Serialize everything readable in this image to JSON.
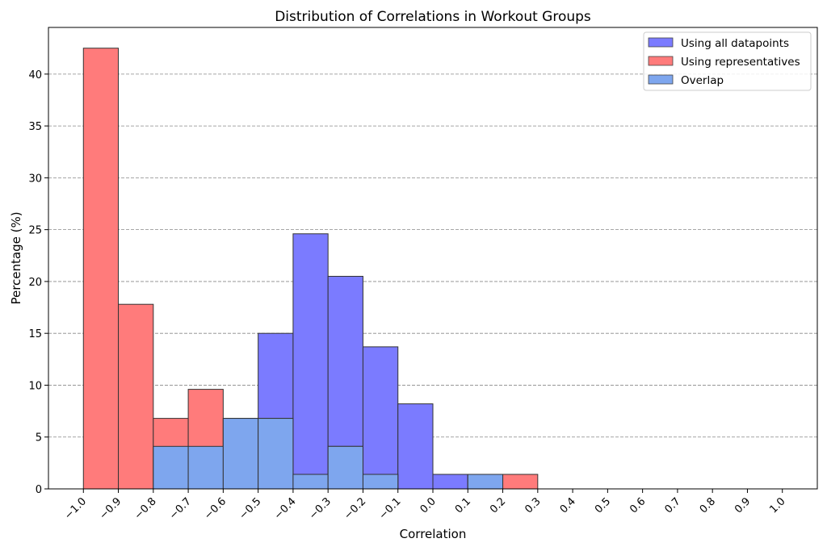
{
  "chart_data": {
    "type": "bar",
    "title": "Distribution of Correlations in Workout Groups",
    "xlabel": "Correlation",
    "ylabel": "Percentage (%)",
    "xlim": [
      -1.1,
      1.1
    ],
    "ylim": [
      0,
      44.5
    ],
    "grid": "y-dashed",
    "legend_position": "top-right",
    "bin_edges": [
      -1.0,
      -0.9,
      -0.8,
      -0.7,
      -0.6,
      -0.5,
      -0.4,
      -0.3,
      -0.2,
      -0.1,
      0.0,
      0.1,
      0.2,
      0.3,
      0.4,
      0.5,
      0.6,
      0.7,
      0.8,
      0.9,
      1.0
    ],
    "x_ticks": [
      -1.0,
      -0.9,
      -0.8,
      -0.7,
      -0.6,
      -0.5,
      -0.4,
      -0.3,
      -0.2,
      -0.1,
      0.0,
      0.1,
      0.2,
      0.3,
      0.4,
      0.5,
      0.6,
      0.7,
      0.8,
      0.9,
      1.0
    ],
    "x_tick_labels": [
      "−1.0",
      "−0.9",
      "−0.8",
      "−0.7",
      "−0.6",
      "−0.5",
      "−0.4",
      "−0.3",
      "−0.2",
      "−0.1",
      "0.0",
      "0.1",
      "0.2",
      "0.3",
      "0.4",
      "0.5",
      "0.6",
      "0.7",
      "0.8",
      "0.9",
      "1.0"
    ],
    "y_ticks": [
      0,
      5,
      10,
      15,
      20,
      25,
      30,
      35,
      40
    ],
    "y_tick_labels": [
      "0",
      "5",
      "10",
      "15",
      "20",
      "25",
      "30",
      "35",
      "40"
    ],
    "series": [
      {
        "name": "Using all datapoints",
        "color": "#7b7bff",
        "values": [
          0,
          0,
          4.1,
          4.1,
          6.8,
          15.0,
          24.6,
          20.5,
          13.7,
          8.2,
          1.4,
          1.4,
          0,
          0,
          0,
          0,
          0,
          0,
          0,
          0
        ]
      },
      {
        "name": "Using representatives",
        "color": "#ff7b7b",
        "values": [
          42.5,
          17.8,
          6.8,
          9.6,
          6.8,
          6.8,
          1.4,
          4.1,
          1.4,
          0,
          0,
          1.4,
          1.4,
          0,
          0,
          0,
          0,
          0,
          0,
          0
        ]
      },
      {
        "name": "Overlap",
        "color": "#7ea6ee",
        "values": [
          0,
          0,
          4.1,
          4.1,
          6.8,
          6.8,
          1.4,
          4.1,
          1.4,
          0,
          0,
          1.4,
          0,
          0,
          0,
          0,
          0,
          0,
          0,
          0
        ]
      }
    ]
  }
}
